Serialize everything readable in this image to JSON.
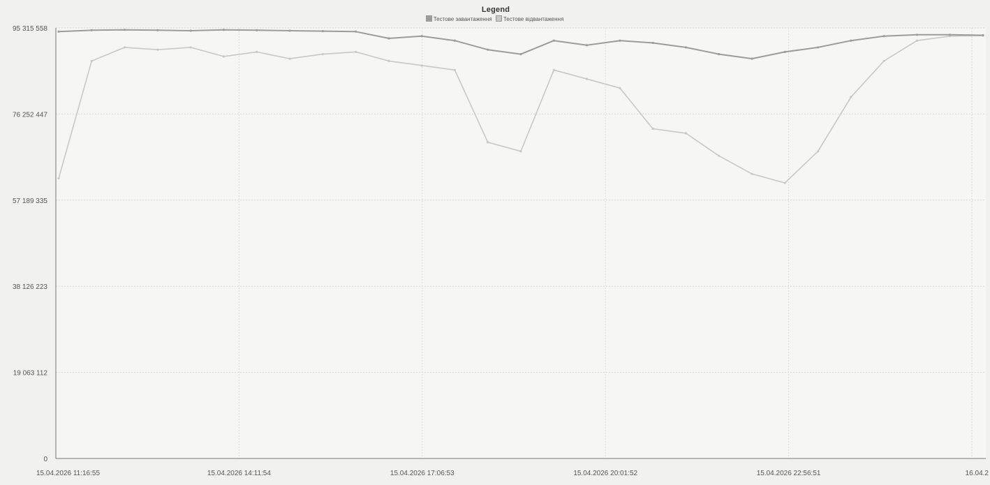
{
  "chart_data": {
    "type": "line",
    "title": "",
    "legend_title": "Legend",
    "legend_position": "top-center",
    "grid": true,
    "xlabel": "",
    "ylabel": "",
    "ylim": [
      0,
      95315558
    ],
    "y_ticks": [
      "0",
      "19 063 112",
      "38 126 223",
      "57 189 335",
      "76 252 447",
      "95 315 558"
    ],
    "y_tick_values": [
      0,
      19063112,
      38126223,
      57189335,
      76252447,
      95315558
    ],
    "x_ticks": [
      "15.04.2026 11:16:55",
      "15.04.2026 14:11:54",
      "15.04.2026 17:06:53",
      "15.04.2026 20:01:52",
      "15.04.2026 22:56:51",
      "16.04.2"
    ],
    "x": [
      "11:16",
      "11:30",
      "12:00",
      "12:30",
      "13:00",
      "13:30",
      "14:00",
      "14:30",
      "15:00",
      "15:30",
      "16:00",
      "16:30",
      "17:00",
      "17:30",
      "18:00",
      "18:30",
      "19:00",
      "19:30",
      "20:00",
      "20:30",
      "21:00",
      "21:30",
      "22:00",
      "22:30",
      "23:00",
      "23:30",
      "00:00",
      "00:30",
      "01:00"
    ],
    "series": [
      {
        "name": "Тестове завантаження",
        "color": "#9c9c9c",
        "values": [
          94500000,
          94800000,
          94900000,
          94800000,
          94700000,
          94900000,
          94800000,
          94700000,
          94600000,
          94500000,
          93000000,
          93500000,
          92500000,
          90500000,
          89500000,
          92500000,
          91500000,
          92500000,
          92000000,
          91000000,
          89500000,
          88500000,
          90000000,
          91000000,
          92500000,
          93500000,
          93800000,
          93800000,
          93700000
        ]
      },
      {
        "name": "Тестове відвантаження",
        "color": "#c8c8c8",
        "values": [
          62000000,
          88000000,
          91000000,
          90500000,
          91000000,
          89000000,
          90000000,
          88500000,
          89500000,
          90000000,
          88000000,
          87000000,
          86000000,
          70000000,
          68000000,
          86000000,
          84000000,
          82000000,
          73000000,
          72000000,
          67000000,
          63000000,
          61000000,
          68000000,
          80000000,
          88000000,
          92500000,
          93500000,
          93600000
        ]
      }
    ]
  }
}
